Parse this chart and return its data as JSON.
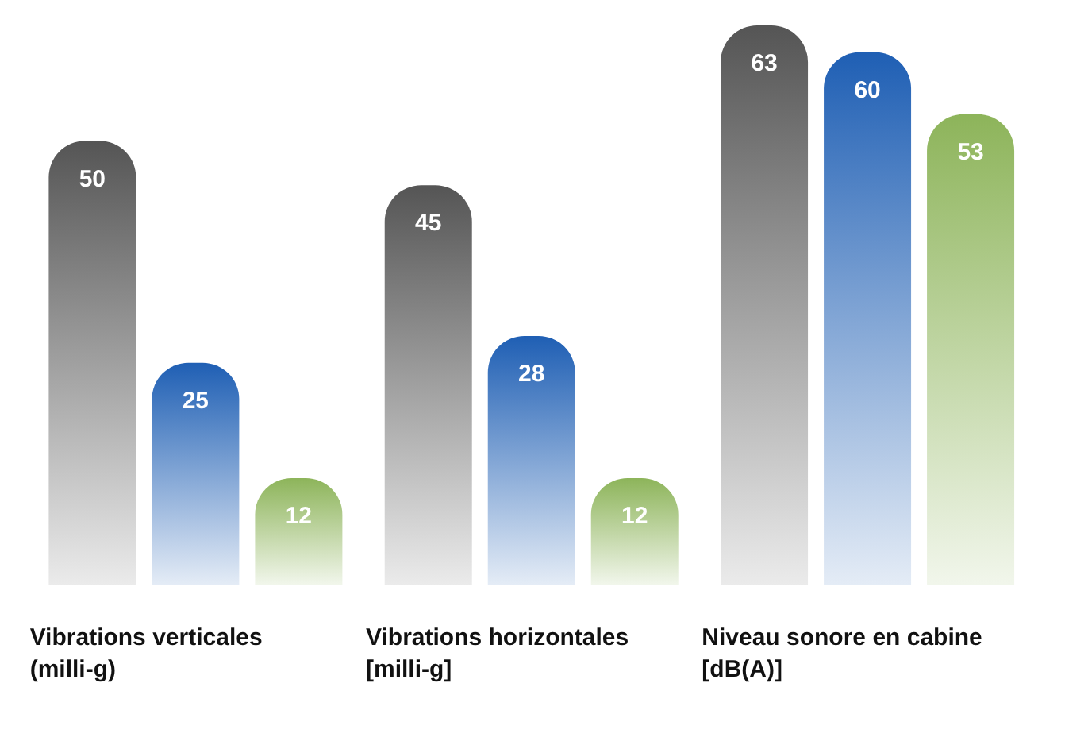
{
  "chart_data": {
    "type": "bar",
    "categories": [
      "Vibrations verticales (milli-g)",
      "Vibrations horizontales [milli-g]",
      "Niveau sonore en cabine [dB(A)]"
    ],
    "series": [
      {
        "color": "#555555",
        "values": [
          50,
          45,
          63
        ]
      },
      {
        "color": "#1f5fb4",
        "values": [
          25,
          28,
          60
        ]
      },
      {
        "color": "#8db45a",
        "values": [
          12,
          12,
          53
        ]
      }
    ],
    "data_labels": true,
    "grid": false,
    "legend": false
  }
}
